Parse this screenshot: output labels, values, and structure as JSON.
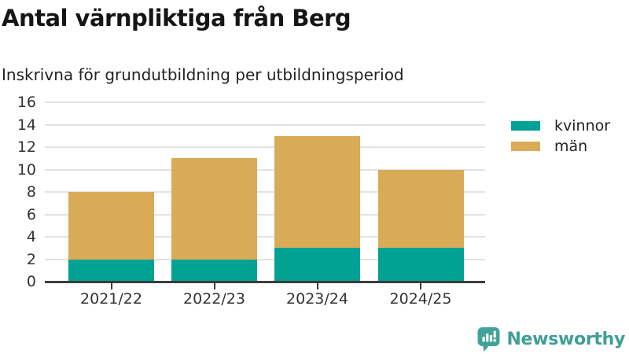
{
  "header": {
    "title": "Antal värnpliktiga från Berg",
    "subtitle": "Inskrivna för grundutbildning per utbildningsperiod"
  },
  "chart_data": {
    "type": "bar",
    "stacked": true,
    "categories": [
      "2021/22",
      "2022/23",
      "2023/24",
      "2024/25"
    ],
    "series": [
      {
        "name": "kvinnor",
        "color": "#00a294",
        "values": [
          2,
          2,
          3,
          3
        ]
      },
      {
        "name": "män",
        "color": "#d9ab57",
        "values": [
          6,
          9,
          10,
          7
        ]
      }
    ],
    "stack_totals": [
      8,
      11,
      13,
      10
    ],
    "title": "Antal värnpliktiga från Berg",
    "subtitle": "Inskrivna för grundutbildning per utbildningsperiod",
    "xlabel": "",
    "ylabel": "",
    "ylim": [
      0,
      16
    ],
    "ytick_step": 2,
    "y_tick_labels": [
      "0",
      "2",
      "4",
      "6",
      "8",
      "10",
      "12",
      "14",
      "16"
    ],
    "grid": true,
    "legend_position": "right"
  },
  "legend": {
    "items": [
      {
        "label": "kvinnor",
        "color": "#00a294"
      },
      {
        "label": "män",
        "color": "#d9ab57"
      }
    ]
  },
  "footer": {
    "brand": "Newsworthy",
    "brand_color": "#3f9e96",
    "logo_icon": "bar-chart-speech-bubble-icon"
  },
  "colors": {
    "grid": "#e2e2e2",
    "axis": "#3c3c3c",
    "title_text": "#151515",
    "body_text": "#222222"
  }
}
